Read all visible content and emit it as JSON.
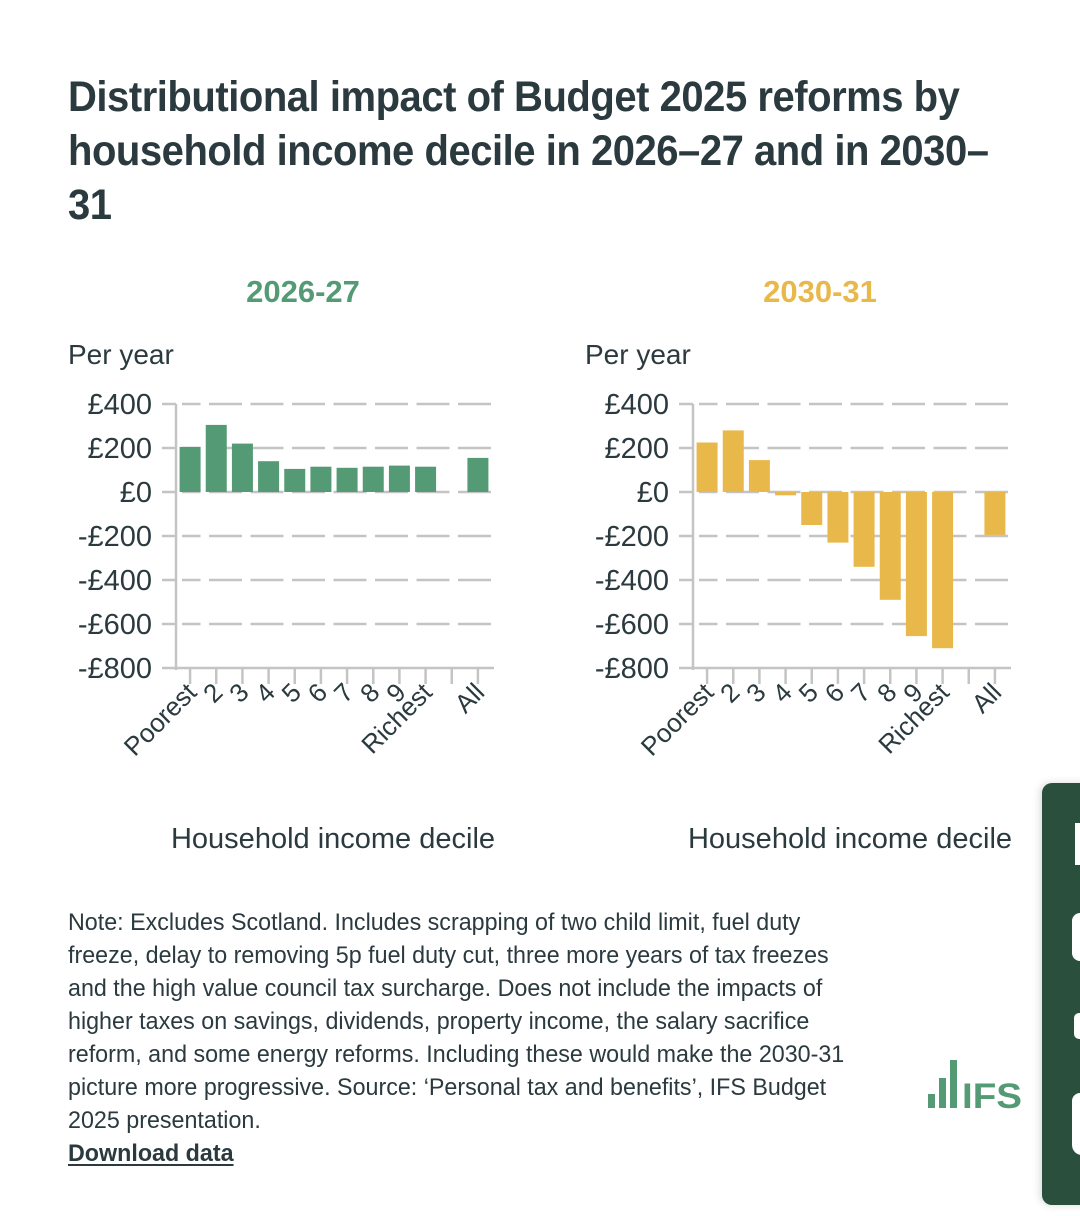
{
  "title": "Distributional impact of Budget 2025 reforms by household income decile in 2026–27 and in 2030–31",
  "colors": {
    "series_2026_27": "#549a74",
    "series_2030_31": "#e8b84a",
    "text": "#2b3a3f",
    "grid": "#c4c4c4",
    "logo": "#549a74",
    "side_panel": "#2a4f3d"
  },
  "chart_data": [
    {
      "type": "bar",
      "title": "2026-27",
      "ylabel": "Per year",
      "xlabel": "Household income decile",
      "categories": [
        "Poorest",
        "2",
        "3",
        "4",
        "5",
        "6",
        "7",
        "8",
        "9",
        "Richest",
        "",
        "All"
      ],
      "values": [
        205,
        305,
        220,
        140,
        105,
        115,
        110,
        115,
        120,
        115,
        null,
        155
      ],
      "ylim": [
        -800,
        400
      ],
      "yticks": [
        400,
        200,
        0,
        -200,
        -400,
        -600,
        -800
      ],
      "ytick_labels": [
        "£400",
        "£200",
        "£0",
        "-£200",
        "-£400",
        "-£600",
        "-£800"
      ],
      "grid": true,
      "legend": "none"
    },
    {
      "type": "bar",
      "title": "2030-31",
      "ylabel": "Per year",
      "xlabel": "Household income decile",
      "categories": [
        "Poorest",
        "2",
        "3",
        "4",
        "5",
        "6",
        "7",
        "8",
        "9",
        "Richest",
        "",
        "All"
      ],
      "values": [
        225,
        280,
        145,
        -15,
        -150,
        -230,
        -340,
        -490,
        -655,
        -710,
        null,
        -195
      ],
      "ylim": [
        -800,
        400
      ],
      "yticks": [
        400,
        200,
        0,
        -200,
        -400,
        -600,
        -800
      ],
      "ytick_labels": [
        "£400",
        "£200",
        "£0",
        "-£200",
        "-£400",
        "-£600",
        "-£800"
      ],
      "grid": true,
      "legend": "none"
    }
  ],
  "note": "Note: Excludes Scotland. Includes scrapping of two child limit, fuel duty freeze, delay to removing 5p fuel duty cut, three more years of tax freezes and the high value council tax surcharge. Does not include the impacts of higher taxes on savings, dividends, property income, the salary sacrifice reform, and some energy reforms. Including these would make the 2030-31 picture more progressive. Source: ‘Personal tax and benefits’, IFS Budget 2025 presentation.",
  "download_label": "Download data",
  "logo_text": "IFS",
  "side_panel_icon": "feedback-icon"
}
